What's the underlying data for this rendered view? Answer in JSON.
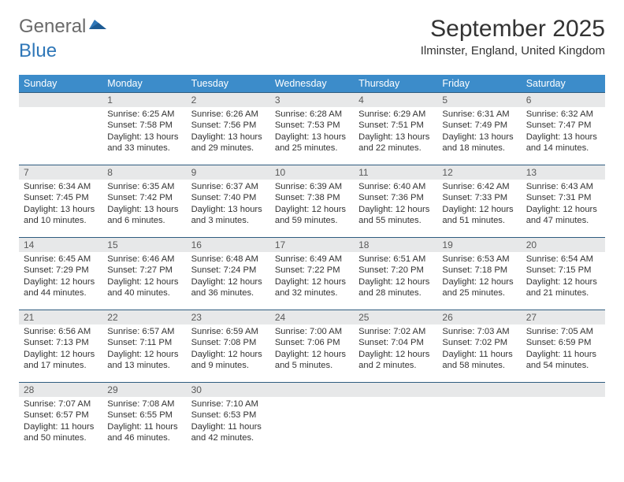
{
  "logo": {
    "word1": "General",
    "word2": "Blue"
  },
  "title": "September 2025",
  "location": "Ilminster, England, United Kingdom",
  "colors": {
    "header_bg": "#3c8cca",
    "daynum_bg": "#e7e8e9",
    "row_border": "#2f5c7f",
    "logo_gray": "#6a6a6a",
    "logo_blue": "#2f77b8",
    "text": "#333333",
    "page_bg": "#ffffff"
  },
  "typography": {
    "month_title_fontsize": 30,
    "location_fontsize": 15,
    "weekday_fontsize": 12.5,
    "daynum_fontsize": 12,
    "body_fontsize": 11.2
  },
  "weekdays": [
    "Sunday",
    "Monday",
    "Tuesday",
    "Wednesday",
    "Thursday",
    "Friday",
    "Saturday"
  ],
  "weeks": [
    [
      null,
      {
        "n": "1",
        "sunrise": "6:25 AM",
        "sunset": "7:58 PM",
        "day_h": 13,
        "day_m": 33
      },
      {
        "n": "2",
        "sunrise": "6:26 AM",
        "sunset": "7:56 PM",
        "day_h": 13,
        "day_m": 29
      },
      {
        "n": "3",
        "sunrise": "6:28 AM",
        "sunset": "7:53 PM",
        "day_h": 13,
        "day_m": 25
      },
      {
        "n": "4",
        "sunrise": "6:29 AM",
        "sunset": "7:51 PM",
        "day_h": 13,
        "day_m": 22
      },
      {
        "n": "5",
        "sunrise": "6:31 AM",
        "sunset": "7:49 PM",
        "day_h": 13,
        "day_m": 18
      },
      {
        "n": "6",
        "sunrise": "6:32 AM",
        "sunset": "7:47 PM",
        "day_h": 13,
        "day_m": 14
      }
    ],
    [
      {
        "n": "7",
        "sunrise": "6:34 AM",
        "sunset": "7:45 PM",
        "day_h": 13,
        "day_m": 10
      },
      {
        "n": "8",
        "sunrise": "6:35 AM",
        "sunset": "7:42 PM",
        "day_h": 13,
        "day_m": 6
      },
      {
        "n": "9",
        "sunrise": "6:37 AM",
        "sunset": "7:40 PM",
        "day_h": 13,
        "day_m": 3
      },
      {
        "n": "10",
        "sunrise": "6:39 AM",
        "sunset": "7:38 PM",
        "day_h": 12,
        "day_m": 59
      },
      {
        "n": "11",
        "sunrise": "6:40 AM",
        "sunset": "7:36 PM",
        "day_h": 12,
        "day_m": 55
      },
      {
        "n": "12",
        "sunrise": "6:42 AM",
        "sunset": "7:33 PM",
        "day_h": 12,
        "day_m": 51
      },
      {
        "n": "13",
        "sunrise": "6:43 AM",
        "sunset": "7:31 PM",
        "day_h": 12,
        "day_m": 47
      }
    ],
    [
      {
        "n": "14",
        "sunrise": "6:45 AM",
        "sunset": "7:29 PM",
        "day_h": 12,
        "day_m": 44
      },
      {
        "n": "15",
        "sunrise": "6:46 AM",
        "sunset": "7:27 PM",
        "day_h": 12,
        "day_m": 40
      },
      {
        "n": "16",
        "sunrise": "6:48 AM",
        "sunset": "7:24 PM",
        "day_h": 12,
        "day_m": 36
      },
      {
        "n": "17",
        "sunrise": "6:49 AM",
        "sunset": "7:22 PM",
        "day_h": 12,
        "day_m": 32
      },
      {
        "n": "18",
        "sunrise": "6:51 AM",
        "sunset": "7:20 PM",
        "day_h": 12,
        "day_m": 28
      },
      {
        "n": "19",
        "sunrise": "6:53 AM",
        "sunset": "7:18 PM",
        "day_h": 12,
        "day_m": 25
      },
      {
        "n": "20",
        "sunrise": "6:54 AM",
        "sunset": "7:15 PM",
        "day_h": 12,
        "day_m": 21
      }
    ],
    [
      {
        "n": "21",
        "sunrise": "6:56 AM",
        "sunset": "7:13 PM",
        "day_h": 12,
        "day_m": 17
      },
      {
        "n": "22",
        "sunrise": "6:57 AM",
        "sunset": "7:11 PM",
        "day_h": 12,
        "day_m": 13
      },
      {
        "n": "23",
        "sunrise": "6:59 AM",
        "sunset": "7:08 PM",
        "day_h": 12,
        "day_m": 9
      },
      {
        "n": "24",
        "sunrise": "7:00 AM",
        "sunset": "7:06 PM",
        "day_h": 12,
        "day_m": 5
      },
      {
        "n": "25",
        "sunrise": "7:02 AM",
        "sunset": "7:04 PM",
        "day_h": 12,
        "day_m": 2
      },
      {
        "n": "26",
        "sunrise": "7:03 AM",
        "sunset": "7:02 PM",
        "day_h": 11,
        "day_m": 58
      },
      {
        "n": "27",
        "sunrise": "7:05 AM",
        "sunset": "6:59 PM",
        "day_h": 11,
        "day_m": 54
      }
    ],
    [
      {
        "n": "28",
        "sunrise": "7:07 AM",
        "sunset": "6:57 PM",
        "day_h": 11,
        "day_m": 50
      },
      {
        "n": "29",
        "sunrise": "7:08 AM",
        "sunset": "6:55 PM",
        "day_h": 11,
        "day_m": 46
      },
      {
        "n": "30",
        "sunrise": "7:10 AM",
        "sunset": "6:53 PM",
        "day_h": 11,
        "day_m": 42
      },
      null,
      null,
      null,
      null
    ]
  ],
  "labels": {
    "sunrise": "Sunrise:",
    "sunset": "Sunset:",
    "daylight": "Daylight:",
    "hours_word": "hours",
    "and_word": "and",
    "minutes_word": "minutes."
  }
}
